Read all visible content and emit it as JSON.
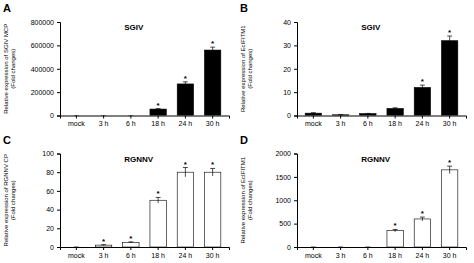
{
  "chart_data": [
    {
      "type": "bar",
      "title": "SGIV",
      "y_label": "Relative expression of SGIV MCP\n(Fold changes)",
      "categories": [
        "mock",
        "3 h",
        "6 h",
        "18 h",
        "24 h",
        "30 h"
      ],
      "values": [
        0,
        0,
        0,
        55000,
        270000,
        560000
      ],
      "errors": [
        0,
        0,
        0,
        4000,
        18000,
        25000
      ],
      "ylim": [
        0,
        800000
      ],
      "yticks": [
        0,
        200000,
        400000,
        600000,
        800000
      ],
      "color": "black",
      "annotations": [
        {
          "text": "A"
        },
        {
          "text": "*",
          "x": "18 h"
        },
        {
          "text": "*",
          "x": "24 h"
        },
        {
          "text": "*",
          "x": "30 h"
        }
      ]
    },
    {
      "type": "bar",
      "title": "SGIV",
      "y_label": "Relative expression of EcIFITM1\n(Fold changes)",
      "categories": [
        "mock",
        "3 h",
        "6 h",
        "18 h",
        "24 h",
        "30 h"
      ],
      "values": [
        1.0,
        0.3,
        0.8,
        3.0,
        12.0,
        32.0
      ],
      "errors": [
        0.2,
        0.1,
        0.1,
        0.3,
        1.0,
        2.0
      ],
      "ylim": [
        0,
        40
      ],
      "yticks": [
        0,
        10,
        20,
        30,
        40
      ],
      "color": "black",
      "annotations": [
        {
          "text": "B"
        },
        {
          "text": "*",
          "x": "24 h"
        },
        {
          "text": "*",
          "x": "30 h"
        }
      ]
    },
    {
      "type": "bar",
      "title": "RGNNV",
      "y_label": "Relative expression of RGNNV CP\n(Fold changes)",
      "categories": [
        "mock",
        "3 h",
        "6 h",
        "18 h",
        "24 h",
        "30 h"
      ],
      "values": [
        0,
        2,
        5,
        50,
        80,
        80
      ],
      "errors": [
        0,
        0.5,
        0.5,
        3,
        5,
        4
      ],
      "ylim": [
        0,
        100
      ],
      "yticks": [
        0,
        20,
        40,
        60,
        80,
        100
      ],
      "color": "white",
      "annotations": [
        {
          "text": "C"
        },
        {
          "text": "*",
          "x": "3 h"
        },
        {
          "text": "*",
          "x": "6 h"
        },
        {
          "text": "*",
          "x": "18 h"
        },
        {
          "text": "*",
          "x": "24 h"
        },
        {
          "text": "*",
          "x": "30 h"
        }
      ]
    },
    {
      "type": "bar",
      "title": "RGNNV",
      "y_label": "Relative expression of EcIFITM1\n(Fold changes)",
      "categories": [
        "mock",
        "3 h",
        "6 h",
        "18 h",
        "24 h",
        "30 h"
      ],
      "values": [
        0,
        0,
        0,
        350,
        600,
        1650
      ],
      "errors": [
        0,
        0,
        0,
        25,
        40,
        80
      ],
      "ylim": [
        0,
        2000
      ],
      "yticks": [
        0,
        500,
        1000,
        1500,
        2000
      ],
      "color": "white",
      "annotations": [
        {
          "text": "D"
        },
        {
          "text": "*",
          "x": "18 h"
        },
        {
          "text": "*",
          "x": "24 h"
        },
        {
          "text": "*",
          "x": "30 h"
        }
      ]
    }
  ]
}
